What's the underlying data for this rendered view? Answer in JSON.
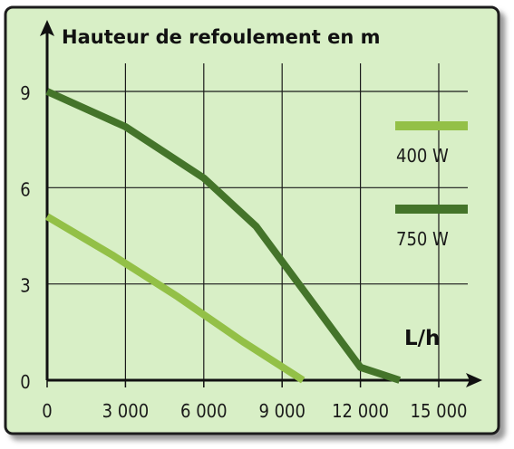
{
  "chart_data": {
    "type": "line",
    "title": "Hauteur de refoulement en m",
    "xlabel": "L/h",
    "ylabel": "",
    "xlim": [
      0,
      15000
    ],
    "ylim": [
      0,
      9
    ],
    "x_ticks": [
      "0",
      "3 000",
      "6 000",
      "9 000",
      "12 000",
      "15 000"
    ],
    "y_ticks": [
      "0",
      "3",
      "6",
      "9"
    ],
    "grid": true,
    "legend_position": "right",
    "series": [
      {
        "name": "400 W",
        "color": "#93c047",
        "x": [
          0,
          2500,
          5000,
          7500,
          9800
        ],
        "y": [
          5.1,
          3.9,
          2.6,
          1.2,
          0
        ]
      },
      {
        "name": "750 W",
        "color": "#44742a",
        "x": [
          0,
          3000,
          6000,
          8000,
          10000,
          12000,
          13500
        ],
        "y": [
          9.0,
          7.9,
          6.3,
          4.8,
          2.6,
          0.4,
          0
        ]
      }
    ]
  },
  "background": "#d8efc6",
  "frame_color": "#1a1a1a"
}
